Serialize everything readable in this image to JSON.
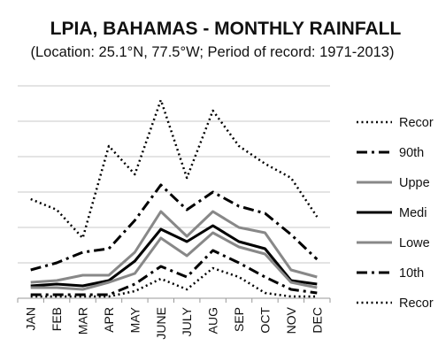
{
  "chart_data": {
    "type": "line",
    "title": "LPIA, BAHAMAS - MONTHLY RAINFALL",
    "subtitle": "(Location: 25.1°N, 77.5°W; Period of record: 1971-2013)",
    "categories": [
      "JAN",
      "FEB",
      "MAR",
      "APR",
      "MAY",
      "JUNE",
      "JULY",
      "AUG",
      "SEP",
      "OCT",
      "NOV",
      "DEC"
    ],
    "ylim": [
      0,
      6
    ],
    "grid": true,
    "legend_position": "right",
    "series": [
      {
        "name": "Recor",
        "style": "dotted",
        "color": "#000000",
        "values": [
          2.8,
          2.5,
          1.7,
          4.3,
          3.5,
          5.6,
          3.4,
          5.3,
          4.3,
          3.8,
          3.4,
          2.3
        ]
      },
      {
        "name": "90th",
        "style": "dashdot",
        "color": "#000000",
        "values": [
          0.8,
          1.0,
          1.3,
          1.4,
          2.2,
          3.2,
          2.5,
          3.0,
          2.6,
          2.4,
          1.8,
          1.1
        ]
      },
      {
        "name": "Uppe",
        "style": "solid",
        "color": "#888888",
        "values": [
          0.45,
          0.5,
          0.65,
          0.65,
          1.3,
          2.45,
          1.75,
          2.45,
          2.0,
          1.85,
          0.8,
          0.6
        ]
      },
      {
        "name": "Medi",
        "style": "solid",
        "color": "#000000",
        "values": [
          0.35,
          0.4,
          0.35,
          0.5,
          1.05,
          1.95,
          1.6,
          2.05,
          1.6,
          1.4,
          0.5,
          0.4
        ]
      },
      {
        "name": "Lowe",
        "style": "solid",
        "color": "#888888",
        "values": [
          0.3,
          0.3,
          0.25,
          0.45,
          0.7,
          1.7,
          1.2,
          1.85,
          1.45,
          1.25,
          0.45,
          0.3
        ]
      },
      {
        "name": "10th",
        "style": "dashdot",
        "color": "#000000",
        "values": [
          0.1,
          0.1,
          0.1,
          0.1,
          0.4,
          0.9,
          0.6,
          1.35,
          1.0,
          0.6,
          0.25,
          0.15
        ]
      },
      {
        "name": "Recor",
        "style": "dotted",
        "color": "#000000",
        "values": [
          0.05,
          0.05,
          0.05,
          0.05,
          0.2,
          0.55,
          0.25,
          0.85,
          0.6,
          0.15,
          0.05,
          0.05
        ]
      }
    ]
  }
}
